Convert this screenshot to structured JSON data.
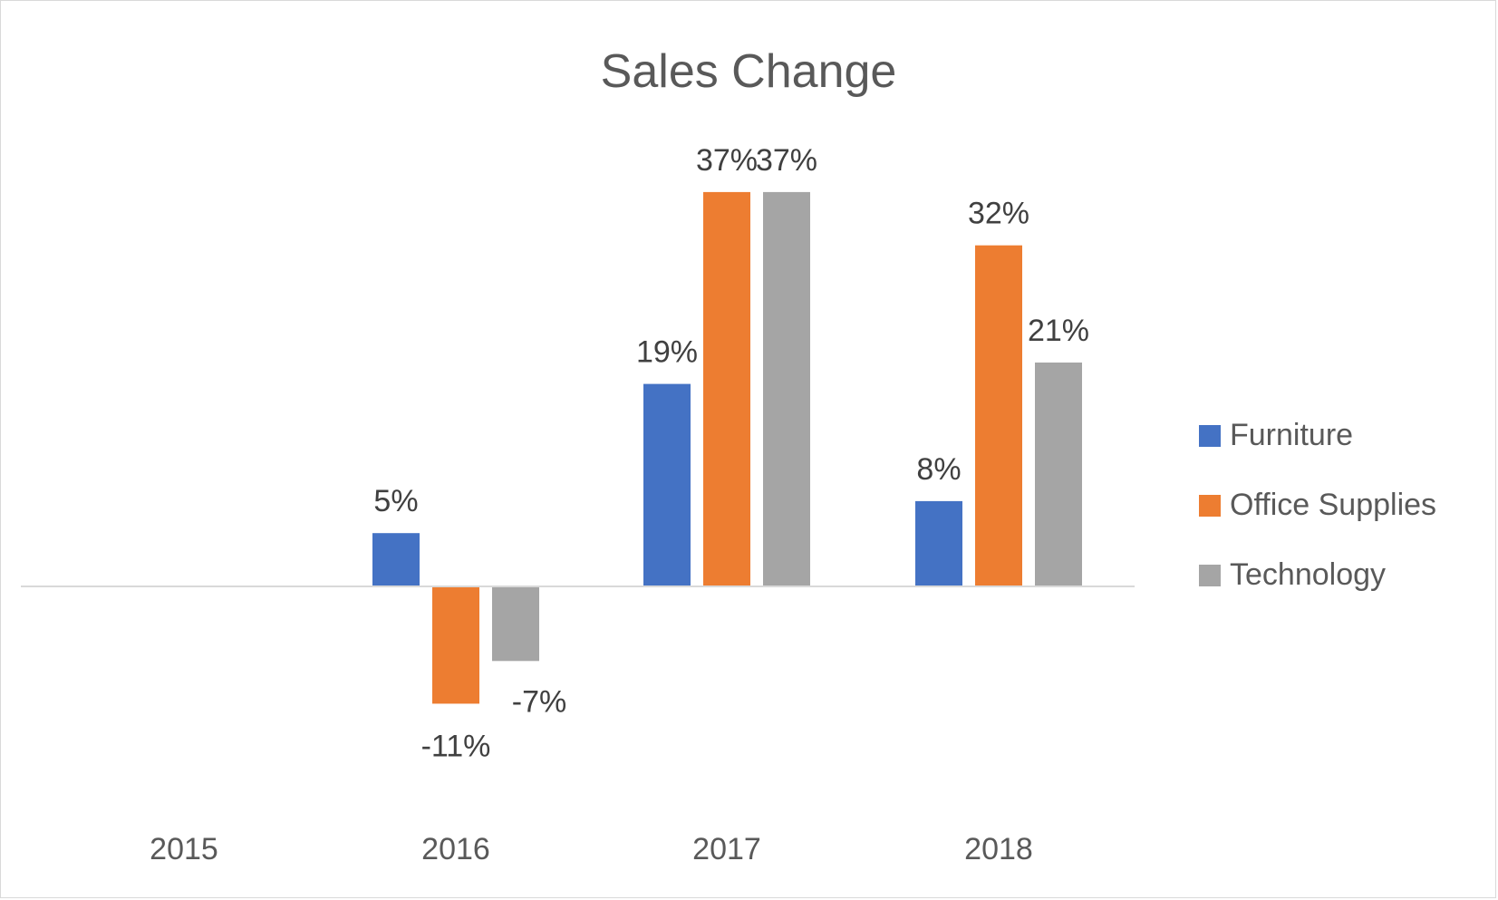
{
  "chart_data": {
    "type": "bar",
    "title": "Sales Change",
    "xlabel": "",
    "ylabel": "",
    "categories": [
      "2015",
      "2016",
      "2017",
      "2018"
    ],
    "series": [
      {
        "name": "Furniture",
        "color": "#4472c4",
        "values": [
          null,
          5,
          19,
          8
        ],
        "labels": [
          "",
          "5%",
          "19%",
          "8%"
        ]
      },
      {
        "name": "Office Supplies",
        "color": "#ed7d31",
        "values": [
          null,
          -11,
          37,
          32
        ],
        "labels": [
          "",
          "-11%",
          "37%",
          "32%"
        ]
      },
      {
        "name": "Technology",
        "color": "#a5a5a5",
        "values": [
          null,
          -7,
          37,
          21
        ],
        "labels": [
          "",
          "-7%",
          "37%",
          "21%"
        ]
      }
    ],
    "ylim": [
      -11,
      37
    ],
    "grid": false,
    "legend_position": "right"
  }
}
